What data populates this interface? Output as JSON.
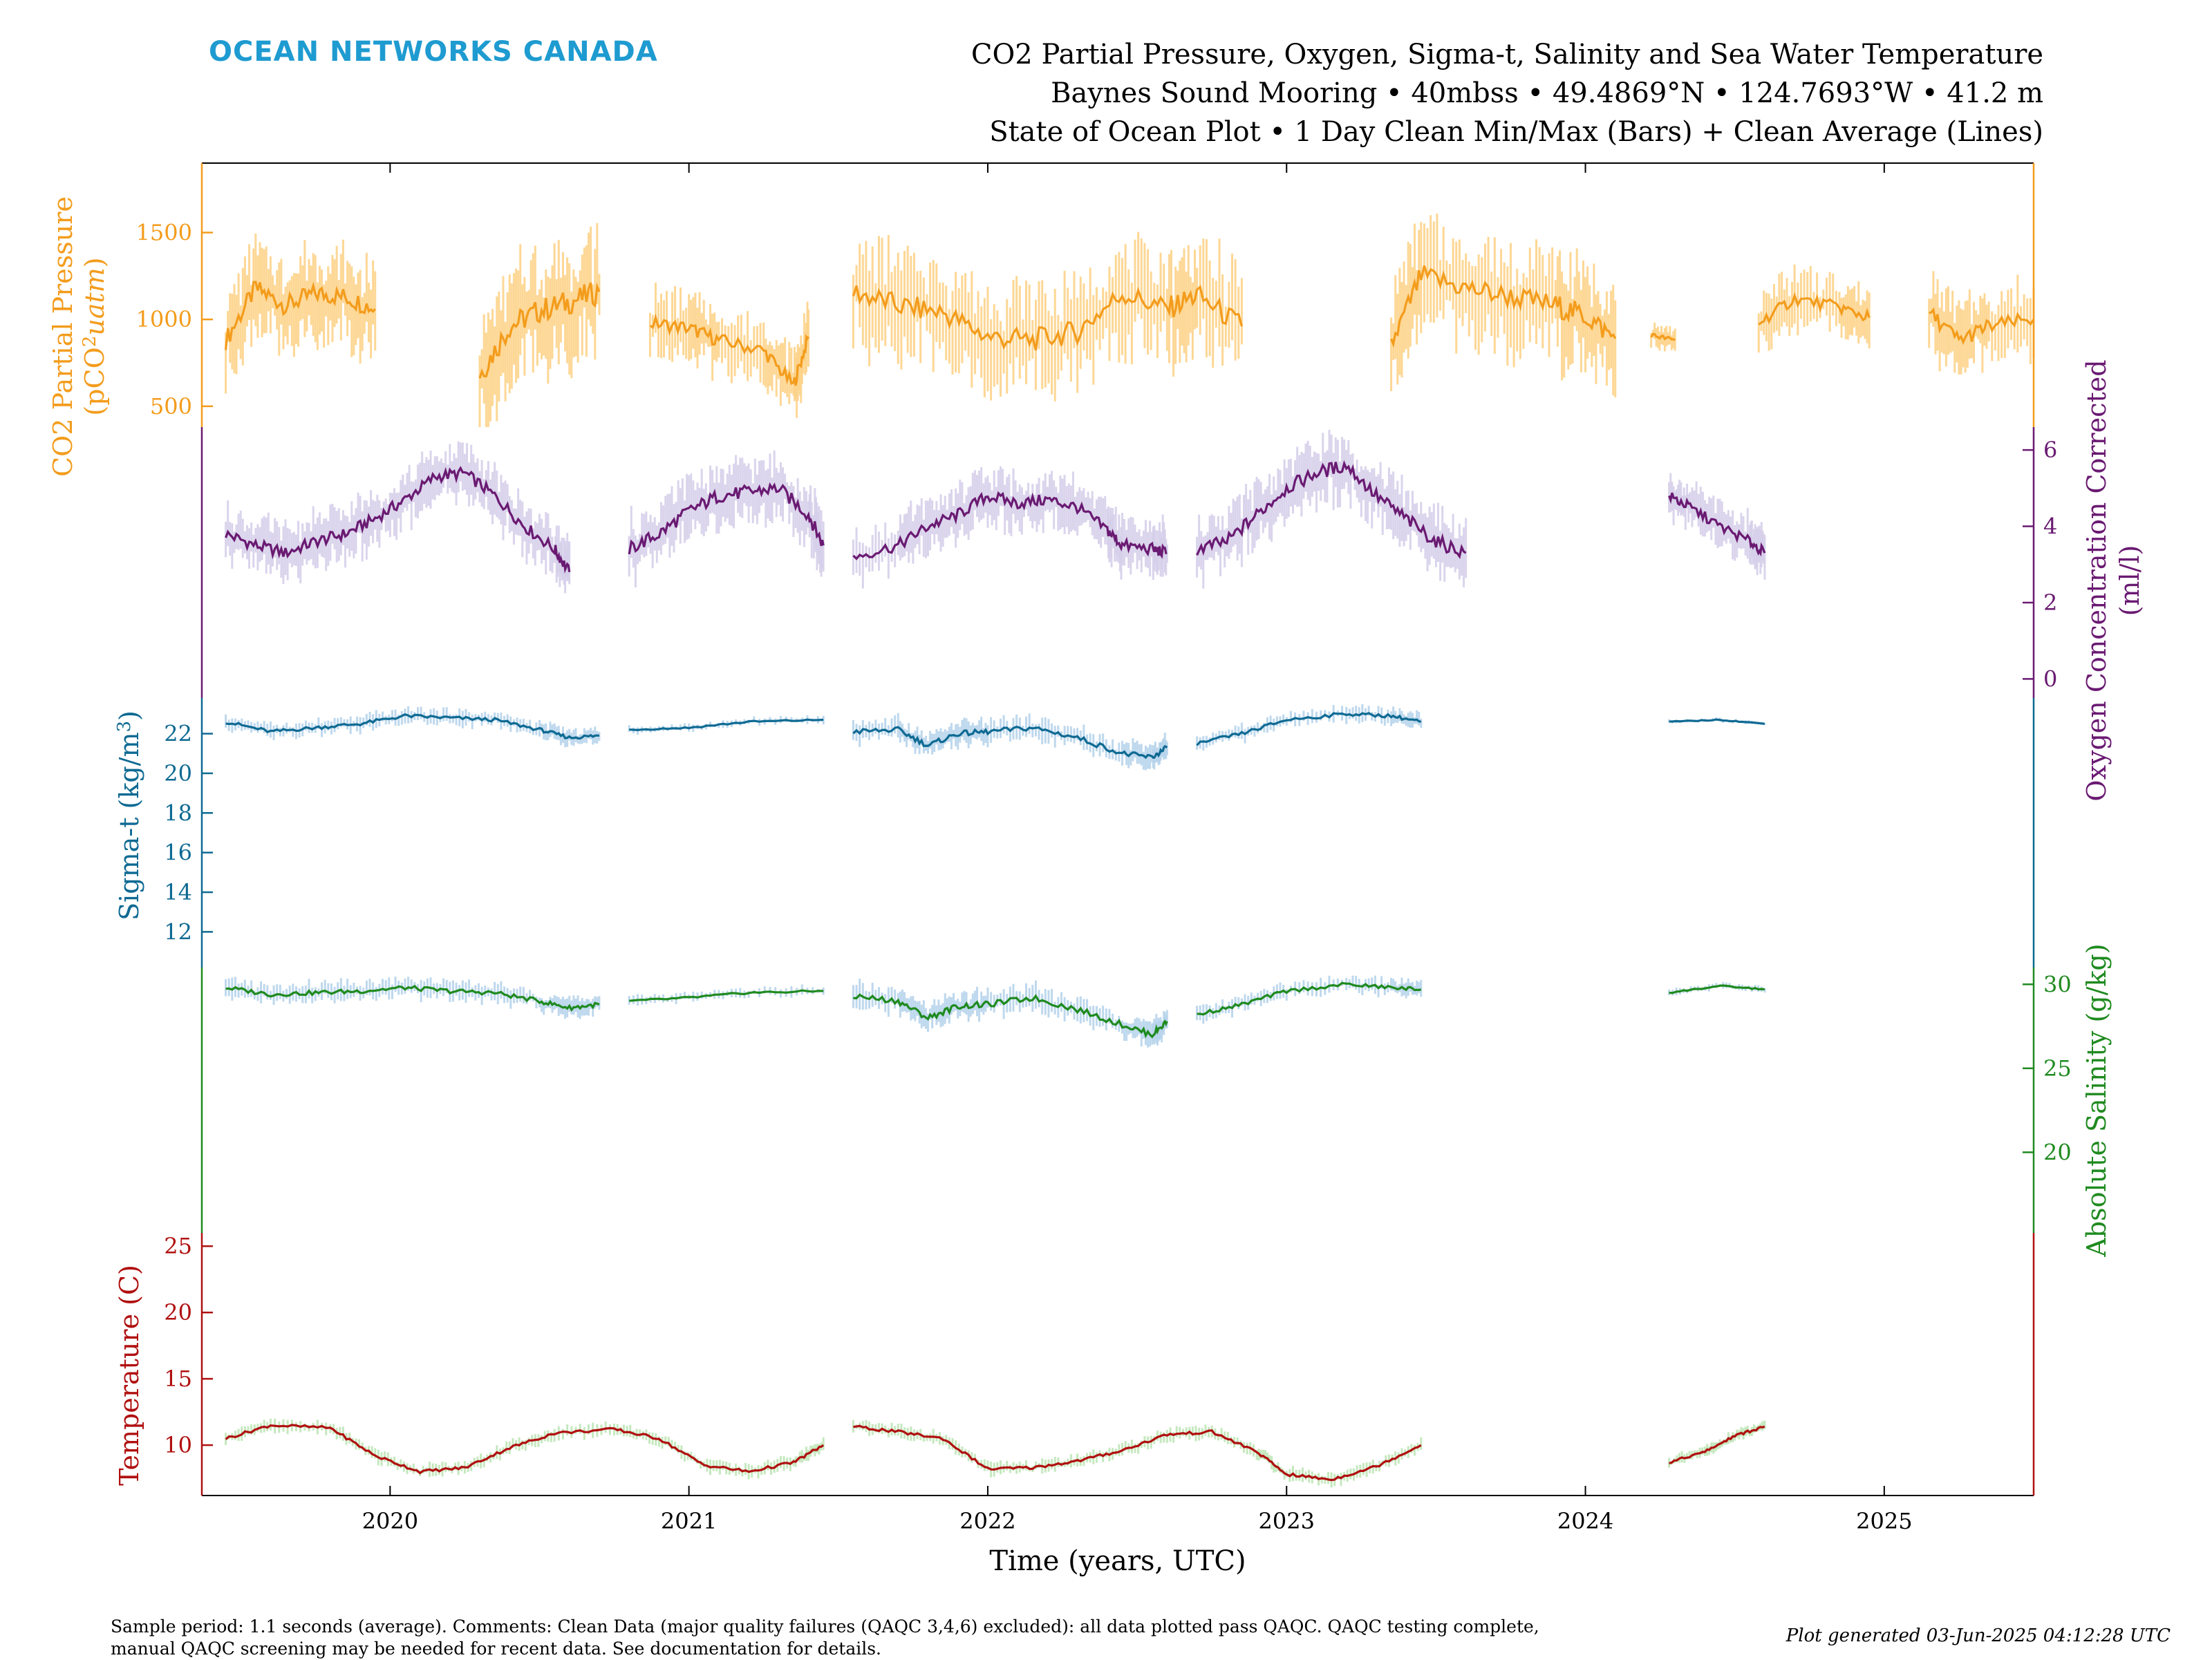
{
  "header": {
    "brand": "OCEAN NETWORKS CANADA",
    "brand_color": "#1e9bd0",
    "title_lines": [
      "CO2 Partial Pressure, Oxygen, Sigma-t, Salinity and Sea Water Temperature",
      "Baynes Sound Mooring • 40mbss • 49.4869°N • 124.7693°W • 41.2 m",
      "State of Ocean Plot • 1 Day Clean Min/Max (Bars) + Clean Average (Lines)"
    ]
  },
  "footer": {
    "note_line1": "Sample period: 1.1 seconds (average). Comments: Clean Data (major quality failures (QAQC 3,4,6) excluded): all data plotted pass QAQC. QAQC testing complete,",
    "note_line2": "manual QAQC screening may be needed for recent data. See documentation for details.",
    "generated": "Plot generated 03-Jun-2025 04:12:28 UTC"
  },
  "chart_data": {
    "type": "line",
    "xlabel": "Time (years, UTC)",
    "x_ticks": [
      "2020",
      "2021",
      "2022",
      "2023",
      "2024",
      "2025"
    ],
    "xlim": [
      2019.37,
      2025.5
    ],
    "grid": false,
    "series": [
      {
        "name": "CO2 Partial Pressure",
        "ylabel": "CO2 Partial Pressure (pCO2uatm)",
        "ylabel_line1": "CO2 Partial Pressure",
        "ylabel_line2": "(pCO",
        "ylabel_sup": "2",
        "ylabel_unit": "uatm",
        "ylabel_close": ")",
        "axis_side": "left",
        "ylim": [
          380,
          1900
        ],
        "yticks": [
          "500",
          "1000",
          "1500"
        ],
        "line_color": "#f39c1c",
        "bar_color": "#fdd38a",
        "segments": [
          {
            "x": [
              2019.45,
              2019.55,
              2019.65,
              2019.75,
              2019.85,
              2019.95
            ],
            "y": [
              880,
              1180,
              1080,
              1150,
              1130,
              1060
            ],
            "spread": 250
          },
          {
            "x": [
              2020.3,
              2020.4,
              2020.5,
              2020.6,
              2020.7
            ],
            "y": [
              680,
              960,
              1050,
              1100,
              1160
            ],
            "spread": 320
          },
          {
            "x": [
              2020.87,
              2021.0,
              2021.1,
              2021.25,
              2021.35,
              2021.4
            ],
            "y": [
              980,
              950,
              880,
              820,
              620,
              900
            ],
            "spread": 180
          },
          {
            "x": [
              2021.55,
              2021.7,
              2021.85,
              2022.0,
              2022.15,
              2022.3,
              2022.45,
              2022.6,
              2022.7,
              2022.85
            ],
            "y": [
              1160,
              1080,
              1040,
              900,
              880,
              930,
              1150,
              1060,
              1140,
              960
            ],
            "spread": 300
          },
          {
            "x": [
              2023.35,
              2023.45,
              2023.6,
              2023.75,
              2023.9,
              2024.0,
              2024.1
            ],
            "y": [
              850,
              1250,
              1180,
              1130,
              1080,
              1020,
              890
            ],
            "spread": 300
          },
          {
            "x": [
              2024.22,
              2024.3
            ],
            "y": [
              910,
              880
            ],
            "spread": 60
          },
          {
            "x": [
              2024.58,
              2024.7,
              2024.85,
              2024.95
            ],
            "y": [
              980,
              1120,
              1070,
              1010
            ],
            "spread": 160
          },
          {
            "x": [
              2025.15,
              2025.25,
              2025.35,
              2025.5
            ],
            "y": [
              1040,
              880,
              960,
              1000
            ],
            "spread": 200
          }
        ]
      },
      {
        "name": "Oxygen Concentration Corrected",
        "ylabel_line1": "Oxygen Concentration Corrected",
        "ylabel_line2": "(ml/l)",
        "axis_side": "right",
        "ylim": [
          -0.5,
          6.6
        ],
        "yticks": [
          "0",
          "2",
          "4",
          "6"
        ],
        "line_color": "#6a1a72",
        "bar_color": "#d6d0ea",
        "segments": [
          {
            "x": [
              2019.45,
              2019.55,
              2019.65,
              2019.75,
              2019.85,
              2019.95,
              2020.05,
              2020.15,
              2020.25,
              2020.35,
              2020.45,
              2020.55,
              2020.6
            ],
            "y": [
              3.8,
              3.5,
              3.3,
              3.6,
              3.8,
              4.2,
              4.7,
              5.3,
              5.4,
              4.8,
              4.0,
              3.4,
              2.8
            ],
            "spread": 0.7
          },
          {
            "x": [
              2020.8,
              2020.9,
              2021.0,
              2021.1,
              2021.2,
              2021.3,
              2021.4,
              2021.45
            ],
            "y": [
              3.4,
              3.8,
              4.4,
              4.8,
              4.9,
              5.0,
              4.3,
              3.5
            ],
            "spread": 0.8
          },
          {
            "x": [
              2021.55,
              2021.7,
              2021.8,
              2021.9,
              2022.0,
              2022.1,
              2022.2,
              2022.3,
              2022.4,
              2022.45,
              2022.55,
              2022.6
            ],
            "y": [
              3.2,
              3.5,
              4.0,
              4.3,
              4.8,
              4.6,
              4.7,
              4.5,
              3.9,
              3.5,
              3.4,
              3.3
            ],
            "spread": 0.7
          },
          {
            "x": [
              2022.7,
              2022.8,
              2022.9,
              2023.0,
              2023.1,
              2023.2,
              2023.3,
              2023.4,
              2023.5,
              2023.6
            ],
            "y": [
              3.4,
              3.6,
              4.3,
              5.0,
              5.4,
              5.6,
              4.8,
              4.2,
              3.6,
              3.3
            ],
            "spread": 0.8
          },
          {
            "x": [
              2024.28,
              2024.35,
              2024.45,
              2024.55,
              2024.6
            ],
            "y": [
              4.8,
              4.5,
              4.0,
              3.6,
              3.3
            ],
            "spread": 0.6
          }
        ]
      },
      {
        "name": "Sigma-t",
        "ylabel": "Sigma-t (kg/m3)",
        "ylabel_main": "Sigma-t (kg/m",
        "ylabel_sup": "3",
        "ylabel_close": ")",
        "axis_side": "left",
        "ylim": [
          10.2,
          23.8
        ],
        "yticks": [
          "12",
          "14",
          "16",
          "18",
          "20",
          "22"
        ],
        "line_color": "#0e6a93",
        "bar_color": "#b8d4ec",
        "segments": [
          {
            "x": [
              2019.45,
              2019.6,
              2019.75,
              2019.9,
              2020.05,
              2020.2,
              2020.35,
              2020.5,
              2020.6,
              2020.7
            ],
            "y": [
              22.6,
              22.1,
              22.3,
              22.5,
              22.9,
              22.8,
              22.7,
              22.2,
              21.8,
              21.9
            ],
            "spread": 0.4
          },
          {
            "x": [
              2020.8,
              2021.0,
              2021.2,
              2021.45
            ],
            "y": [
              22.2,
              22.3,
              22.6,
              22.7
            ],
            "spread": 0.2
          },
          {
            "x": [
              2021.55,
              2021.7,
              2021.8,
              2021.9,
              2022.0,
              2022.15,
              2022.3,
              2022.45,
              2022.55,
              2022.6
            ],
            "y": [
              22.1,
              22.2,
              21.4,
              22.0,
              22.1,
              22.3,
              21.8,
              21.0,
              20.8,
              21.3
            ],
            "spread": 0.6
          },
          {
            "x": [
              2022.7,
              2022.85,
              2023.0,
              2023.2,
              2023.35,
              2023.45
            ],
            "y": [
              21.5,
              22.0,
              22.7,
              23.0,
              22.9,
              22.6
            ],
            "spread": 0.4
          },
          {
            "x": [
              2024.28,
              2024.45,
              2024.6
            ],
            "y": [
              22.6,
              22.7,
              22.5
            ],
            "spread": 0.1
          }
        ]
      },
      {
        "name": "Absolute Salinity",
        "ylabel": "Absolute Salinity (g/kg)",
        "axis_side": "right",
        "ylim": [
          15.2,
          31.0
        ],
        "yticks": [
          "20",
          "25",
          "30"
        ],
        "line_color": "#1f8a1f",
        "bar_color": "#b8d4ec",
        "segments": [
          {
            "x": [
              2019.45,
              2019.6,
              2019.75,
              2019.9,
              2020.05,
              2020.2,
              2020.35,
              2020.5,
              2020.6,
              2020.7
            ],
            "y": [
              29.8,
              29.4,
              29.5,
              29.6,
              29.8,
              29.6,
              29.5,
              29.0,
              28.6,
              28.8
            ],
            "spread": 0.6
          },
          {
            "x": [
              2020.8,
              2021.0,
              2021.2,
              2021.45
            ],
            "y": [
              29.0,
              29.2,
              29.5,
              29.6
            ],
            "spread": 0.3
          },
          {
            "x": [
              2021.55,
              2021.7,
              2021.8,
              2021.9,
              2022.0,
              2022.15,
              2022.3,
              2022.45,
              2022.55,
              2022.6
            ],
            "y": [
              29.3,
              29.0,
              28.0,
              28.7,
              28.8,
              29.2,
              28.5,
              27.6,
              27.0,
              27.8
            ],
            "spread": 0.8
          },
          {
            "x": [
              2022.7,
              2022.85,
              2023.0,
              2023.2,
              2023.35,
              2023.45
            ],
            "y": [
              28.2,
              28.8,
              29.6,
              30.0,
              29.8,
              29.7
            ],
            "spread": 0.5
          },
          {
            "x": [
              2024.28,
              2024.45,
              2024.6
            ],
            "y": [
              29.5,
              29.9,
              29.7
            ],
            "spread": 0.2
          }
        ]
      },
      {
        "name": "Temperature",
        "ylabel": "Temperature (C)",
        "axis_side": "left",
        "ylim": [
          6.2,
          26.0
        ],
        "yticks": [
          "10",
          "15",
          "20",
          "25"
        ],
        "line_color": "#b01010",
        "bar_color": "#bfe6b8",
        "segments": [
          {
            "x": [
              2019.45,
              2019.6,
              2019.8,
              2019.95,
              2020.1,
              2020.25,
              2020.4,
              2020.55,
              2020.75,
              2020.9,
              2021.05,
              2021.2,
              2021.35,
              2021.45
            ],
            "y": [
              10.5,
              11.5,
              11.3,
              9.2,
              8.0,
              8.3,
              9.8,
              10.9,
              11.2,
              10.5,
              8.5,
              8.0,
              8.7,
              10.0
            ],
            "spread": 0.5
          },
          {
            "x": [
              2021.55,
              2021.7,
              2021.85,
              2022.0,
              2022.15,
              2022.3,
              2022.45,
              2022.6,
              2022.75,
              2022.9,
              2023.0,
              2023.15,
              2023.3,
              2023.45
            ],
            "y": [
              11.4,
              11.0,
              10.5,
              8.2,
              8.3,
              8.8,
              9.6,
              10.8,
              11.0,
              9.5,
              7.8,
              7.4,
              8.4,
              10.0
            ],
            "spread": 0.5
          },
          {
            "x": [
              2024.28,
              2024.4,
              2024.5,
              2024.6
            ],
            "y": [
              8.7,
              9.5,
              10.7,
              11.4
            ],
            "spread": 0.4
          }
        ]
      }
    ]
  }
}
